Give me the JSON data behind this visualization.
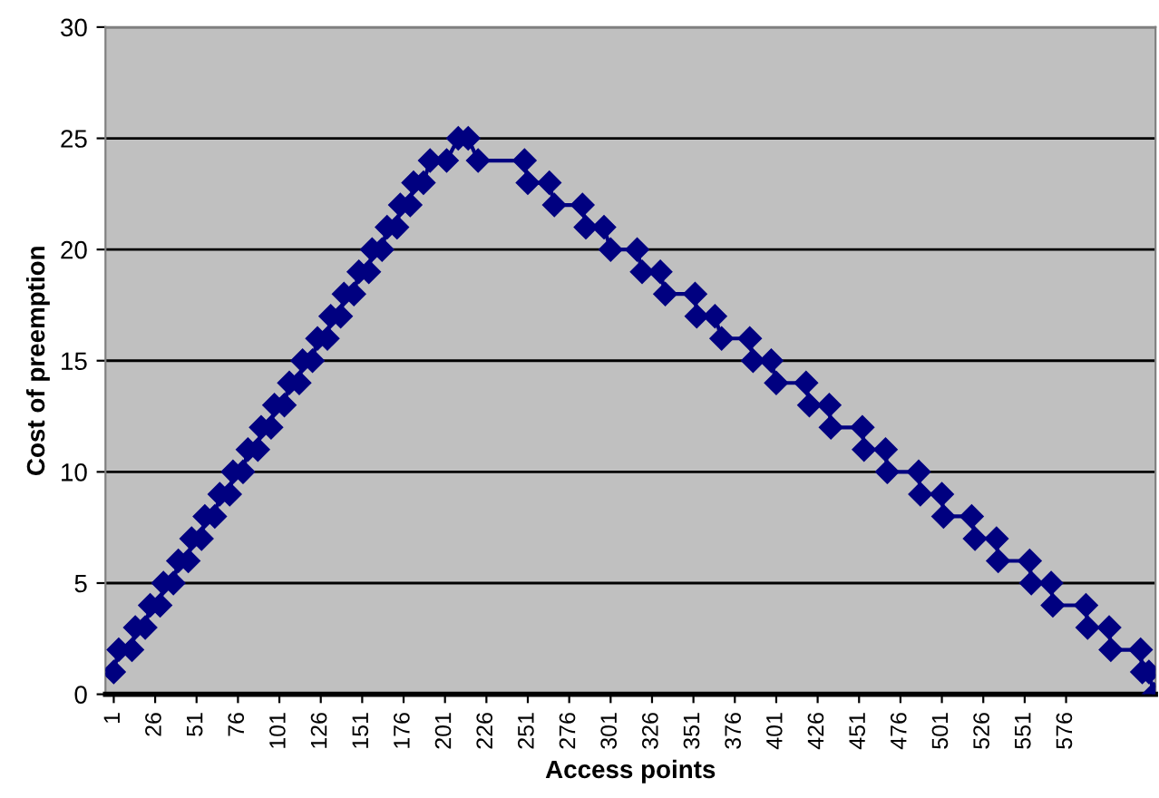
{
  "chart_data": {
    "type": "line",
    "xlabel": "Access points",
    "ylabel": "Cost of preemption",
    "x": [
      1,
      4,
      12,
      14,
      20,
      23,
      29,
      31,
      37,
      40,
      46,
      48,
      54,
      56,
      62,
      65,
      71,
      73,
      79,
      82,
      88,
      90,
      96,
      98,
      104,
      107,
      113,
      115,
      121,
      124,
      130,
      132,
      138,
      140,
      146,
      149,
      155,
      157,
      163,
      166,
      172,
      174,
      180,
      182,
      188,
      192,
      202,
      209,
      215,
      221,
      249,
      251,
      264,
      267,
      284,
      286,
      297,
      301,
      317,
      320,
      331,
      334,
      352,
      353,
      364,
      368,
      385,
      387,
      398,
      401,
      419,
      421,
      433,
      434,
      453,
      454,
      467,
      468,
      487,
      488,
      501,
      502,
      519,
      521,
      534,
      535,
      554,
      555,
      567,
      568,
      588,
      589,
      602,
      603,
      621,
      622,
      626,
      629
    ],
    "series": [
      {
        "color": "#000080",
        "values": [
          1,
          2,
          2,
          3,
          3,
          4,
          4,
          5,
          5,
          6,
          6,
          7,
          7,
          8,
          8,
          9,
          9,
          10,
          10,
          11,
          11,
          12,
          12,
          13,
          13,
          14,
          14,
          15,
          15,
          16,
          16,
          17,
          17,
          18,
          18,
          19,
          19,
          20,
          20,
          21,
          21,
          22,
          22,
          23,
          23,
          24,
          24,
          25,
          25,
          24,
          24,
          23,
          23,
          22,
          22,
          21,
          21,
          20,
          20,
          19,
          19,
          18,
          18,
          17,
          17,
          16,
          16,
          15,
          15,
          14,
          14,
          13,
          13,
          12,
          12,
          11,
          11,
          10,
          10,
          9,
          9,
          8,
          8,
          7,
          7,
          6,
          6,
          5,
          5,
          4,
          4,
          3,
          3,
          2,
          2,
          1,
          1,
          0
        ]
      }
    ],
    "marker": "diamond",
    "grid": "y",
    "xlim": [
      -4,
      630
    ],
    "xticks": [
      1,
      26,
      51,
      76,
      101,
      126,
      151,
      176,
      201,
      226,
      251,
      276,
      301,
      326,
      351,
      376,
      401,
      426,
      451,
      476,
      501,
      526,
      551,
      576
    ],
    "ylim": [
      0,
      30
    ],
    "yticks": [
      0,
      5,
      10,
      15,
      20,
      25,
      30
    ]
  }
}
